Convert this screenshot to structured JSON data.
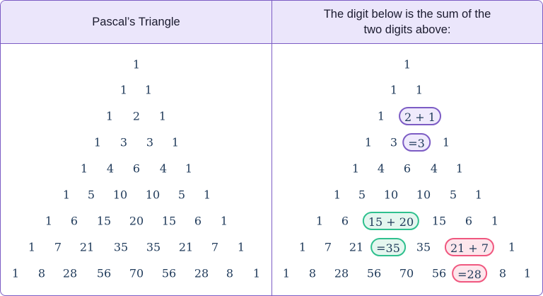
{
  "headers": {
    "left": "Pascal’s Triangle",
    "right_line1": "The digit below is the sum of the",
    "right_line2": "two digits above:"
  },
  "colors": {
    "border": "#7c5cc4",
    "header_bg": "#ebe6fb",
    "text": "#1f3a5a",
    "purple": "#7c5cc4",
    "purple_bg": "#efeafc",
    "green": "#2fc08e",
    "green_bg": "#e4f6ef",
    "pink": "#f0577f",
    "pink_bg": "#fde6ec"
  },
  "triangle": [
    [
      "1"
    ],
    [
      "1",
      "1"
    ],
    [
      "1",
      "2",
      "1"
    ],
    [
      "1",
      "3",
      "3",
      "1"
    ],
    [
      "1",
      "4",
      "6",
      "4",
      "1"
    ],
    [
      "1",
      "5",
      "10",
      "10",
      "5",
      "1"
    ],
    [
      "1",
      "6",
      "15",
      "20",
      "15",
      "6",
      "1"
    ],
    [
      "1",
      "7",
      "21",
      "35",
      "35",
      "21",
      "7",
      "1"
    ],
    [
      "1",
      "8",
      "28",
      "56",
      "70",
      "56",
      "28",
      "8",
      "1"
    ]
  ],
  "explained": [
    [
      {
        "t": "1"
      }
    ],
    [
      {
        "t": "1"
      },
      {
        "t": "1"
      }
    ],
    [
      {
        "t": "1"
      },
      {
        "t": "2 + 1",
        "pill": "purple"
      }
    ],
    [
      {
        "t": "1"
      },
      {
        "t": "3"
      },
      {
        "t": "=3",
        "pill": "purple"
      },
      {
        "t": "1"
      }
    ],
    [
      {
        "t": "1"
      },
      {
        "t": "4"
      },
      {
        "t": "6"
      },
      {
        "t": "4"
      },
      {
        "t": "1"
      }
    ],
    [
      {
        "t": "1"
      },
      {
        "t": "5"
      },
      {
        "t": "10"
      },
      {
        "t": "10"
      },
      {
        "t": "5"
      },
      {
        "t": "1"
      }
    ],
    [
      {
        "t": "1"
      },
      {
        "t": "6"
      },
      {
        "t": "15 + 20",
        "pill": "green"
      },
      {
        "t": "15"
      },
      {
        "t": "6"
      },
      {
        "t": "1"
      }
    ],
    [
      {
        "t": "1"
      },
      {
        "t": "7"
      },
      {
        "t": "21"
      },
      {
        "t": "=35",
        "pill": "green"
      },
      {
        "t": "35"
      },
      {
        "t": "21 + 7",
        "pill": "pink"
      },
      {
        "t": "1"
      }
    ],
    [
      {
        "t": "1"
      },
      {
        "t": "8"
      },
      {
        "t": "28"
      },
      {
        "t": "56"
      },
      {
        "t": "70"
      },
      {
        "t": "56"
      },
      {
        "t": "=28",
        "pill": "pink"
      },
      {
        "t": "8"
      },
      {
        "t": "1"
      }
    ]
  ]
}
